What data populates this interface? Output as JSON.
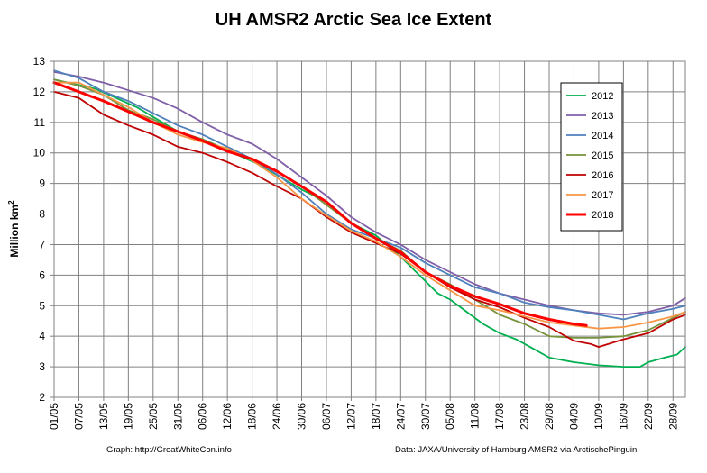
{
  "chart_data": {
    "type": "line",
    "title": "UH AMSR2 Arctic Sea Ice Extent",
    "ylabel_main": "Million km",
    "ylabel_sup": "2",
    "ylim": [
      2,
      13
    ],
    "yticks": [
      2,
      3,
      4,
      5,
      6,
      7,
      8,
      9,
      10,
      11,
      12,
      13
    ],
    "x_days": [
      0,
      153
    ],
    "xticks": [
      {
        "day": 0,
        "label": "01/05"
      },
      {
        "day": 6,
        "label": "07/05"
      },
      {
        "day": 12,
        "label": "13/05"
      },
      {
        "day": 18,
        "label": "19/05"
      },
      {
        "day": 24,
        "label": "25/05"
      },
      {
        "day": 30,
        "label": "31/05"
      },
      {
        "day": 36,
        "label": "06/06"
      },
      {
        "day": 42,
        "label": "12/06"
      },
      {
        "day": 48,
        "label": "18/06"
      },
      {
        "day": 54,
        "label": "24/06"
      },
      {
        "day": 60,
        "label": "30/06"
      },
      {
        "day": 66,
        "label": "06/07"
      },
      {
        "day": 72,
        "label": "12/07"
      },
      {
        "day": 78,
        "label": "18/07"
      },
      {
        "day": 84,
        "label": "24/07"
      },
      {
        "day": 90,
        "label": "30/07"
      },
      {
        "day": 96,
        "label": "05/08"
      },
      {
        "day": 102,
        "label": "11/08"
      },
      {
        "day": 108,
        "label": "17/08"
      },
      {
        "day": 114,
        "label": "23/08"
      },
      {
        "day": 120,
        "label": "29/08"
      },
      {
        "day": 126,
        "label": "04/09"
      },
      {
        "day": 132,
        "label": "10/09"
      },
      {
        "day": 138,
        "label": "16/09"
      },
      {
        "day": 144,
        "label": "22/09"
      },
      {
        "day": 150,
        "label": "28/09"
      }
    ],
    "grid": true,
    "legend_position": "top-right",
    "series": [
      {
        "name": "2012",
        "color": "#00b050",
        "width": 1.8,
        "points": [
          [
            0,
            12.4
          ],
          [
            10,
            12.1
          ],
          [
            20,
            11.5
          ],
          [
            30,
            10.7
          ],
          [
            40,
            10.2
          ],
          [
            50,
            9.6
          ],
          [
            60,
            8.8
          ],
          [
            66,
            8.4
          ],
          [
            72,
            7.7
          ],
          [
            78,
            7.3
          ],
          [
            84,
            6.6
          ],
          [
            90,
            5.8
          ],
          [
            93,
            5.4
          ],
          [
            96,
            5.2
          ],
          [
            100,
            4.8
          ],
          [
            104,
            4.4
          ],
          [
            108,
            4.1
          ],
          [
            112,
            3.9
          ],
          [
            116,
            3.6
          ],
          [
            120,
            3.3
          ],
          [
            126,
            3.15
          ],
          [
            132,
            3.05
          ],
          [
            138,
            3.0
          ],
          [
            142,
            3.0
          ],
          [
            144,
            3.15
          ],
          [
            148,
            3.3
          ],
          [
            151,
            3.4
          ],
          [
            153,
            3.65
          ]
        ]
      },
      {
        "name": "2013",
        "color": "#7f5fa8",
        "width": 1.8,
        "points": [
          [
            0,
            12.65
          ],
          [
            6,
            12.5
          ],
          [
            12,
            12.3
          ],
          [
            18,
            12.05
          ],
          [
            24,
            11.8
          ],
          [
            30,
            11.45
          ],
          [
            36,
            11.0
          ],
          [
            42,
            10.6
          ],
          [
            48,
            10.3
          ],
          [
            54,
            9.8
          ],
          [
            60,
            9.2
          ],
          [
            66,
            8.6
          ],
          [
            72,
            7.9
          ],
          [
            78,
            7.4
          ],
          [
            84,
            7.0
          ],
          [
            90,
            6.5
          ],
          [
            96,
            6.1
          ],
          [
            102,
            5.7
          ],
          [
            108,
            5.4
          ],
          [
            114,
            5.2
          ],
          [
            120,
            5.0
          ],
          [
            126,
            4.85
          ],
          [
            132,
            4.75
          ],
          [
            138,
            4.7
          ],
          [
            144,
            4.8
          ],
          [
            150,
            5.0
          ],
          [
            153,
            5.25
          ]
        ]
      },
      {
        "name": "2014",
        "color": "#4f81bd",
        "width": 1.8,
        "points": [
          [
            0,
            12.7
          ],
          [
            6,
            12.45
          ],
          [
            12,
            12.0
          ],
          [
            18,
            11.7
          ],
          [
            24,
            11.3
          ],
          [
            30,
            10.9
          ],
          [
            36,
            10.6
          ],
          [
            42,
            10.2
          ],
          [
            48,
            9.8
          ],
          [
            54,
            9.3
          ],
          [
            60,
            8.7
          ],
          [
            66,
            8.0
          ],
          [
            72,
            7.5
          ],
          [
            78,
            7.2
          ],
          [
            84,
            6.9
          ],
          [
            90,
            6.4
          ],
          [
            96,
            6.0
          ],
          [
            102,
            5.6
          ],
          [
            108,
            5.4
          ],
          [
            114,
            5.1
          ],
          [
            120,
            4.95
          ],
          [
            126,
            4.85
          ],
          [
            132,
            4.7
          ],
          [
            138,
            4.55
          ],
          [
            144,
            4.75
          ],
          [
            150,
            4.9
          ],
          [
            153,
            5.0
          ]
        ]
      },
      {
        "name": "2015",
        "color": "#77933c",
        "width": 1.8,
        "points": [
          [
            0,
            12.4
          ],
          [
            6,
            12.2
          ],
          [
            12,
            11.9
          ],
          [
            18,
            11.4
          ],
          [
            24,
            11.1
          ],
          [
            30,
            10.7
          ],
          [
            36,
            10.45
          ],
          [
            42,
            10.1
          ],
          [
            48,
            9.8
          ],
          [
            54,
            9.4
          ],
          [
            60,
            8.9
          ],
          [
            66,
            8.3
          ],
          [
            72,
            7.7
          ],
          [
            78,
            7.2
          ],
          [
            84,
            6.8
          ],
          [
            90,
            6.1
          ],
          [
            96,
            5.7
          ],
          [
            102,
            5.2
          ],
          [
            108,
            4.7
          ],
          [
            114,
            4.4
          ],
          [
            120,
            4.0
          ],
          [
            126,
            3.95
          ],
          [
            132,
            3.95
          ],
          [
            138,
            4.0
          ],
          [
            144,
            4.2
          ],
          [
            150,
            4.6
          ],
          [
            153,
            4.8
          ]
        ]
      },
      {
        "name": "2016",
        "color": "#c00000",
        "width": 1.8,
        "points": [
          [
            0,
            12.0
          ],
          [
            6,
            11.8
          ],
          [
            12,
            11.25
          ],
          [
            18,
            10.9
          ],
          [
            24,
            10.6
          ],
          [
            30,
            10.2
          ],
          [
            36,
            10.0
          ],
          [
            42,
            9.7
          ],
          [
            48,
            9.35
          ],
          [
            54,
            8.9
          ],
          [
            60,
            8.5
          ],
          [
            66,
            7.9
          ],
          [
            72,
            7.4
          ],
          [
            78,
            7.05
          ],
          [
            84,
            6.7
          ],
          [
            90,
            6.1
          ],
          [
            96,
            5.6
          ],
          [
            102,
            5.2
          ],
          [
            108,
            4.95
          ],
          [
            114,
            4.6
          ],
          [
            120,
            4.3
          ],
          [
            126,
            3.85
          ],
          [
            130,
            3.75
          ],
          [
            132,
            3.65
          ],
          [
            138,
            3.9
          ],
          [
            144,
            4.1
          ],
          [
            150,
            4.55
          ],
          [
            153,
            4.7
          ]
        ]
      },
      {
        "name": "2017",
        "color": "#f79646",
        "width": 1.8,
        "points": [
          [
            0,
            12.3
          ],
          [
            6,
            12.3
          ],
          [
            12,
            11.9
          ],
          [
            18,
            11.5
          ],
          [
            24,
            11.0
          ],
          [
            30,
            10.6
          ],
          [
            36,
            10.35
          ],
          [
            42,
            10.15
          ],
          [
            48,
            9.75
          ],
          [
            54,
            9.2
          ],
          [
            60,
            8.5
          ],
          [
            66,
            7.95
          ],
          [
            72,
            7.45
          ],
          [
            78,
            7.1
          ],
          [
            84,
            6.6
          ],
          [
            90,
            6.0
          ],
          [
            96,
            5.5
          ],
          [
            102,
            5.0
          ],
          [
            108,
            4.85
          ],
          [
            114,
            4.65
          ],
          [
            120,
            4.45
          ],
          [
            126,
            4.35
          ],
          [
            132,
            4.25
          ],
          [
            138,
            4.3
          ],
          [
            144,
            4.45
          ],
          [
            150,
            4.65
          ],
          [
            153,
            4.8
          ]
        ]
      },
      {
        "name": "2018",
        "color": "#ff0000",
        "width": 3,
        "points": [
          [
            0,
            12.3
          ],
          [
            6,
            12.0
          ],
          [
            12,
            11.7
          ],
          [
            18,
            11.35
          ],
          [
            24,
            11.0
          ],
          [
            30,
            10.7
          ],
          [
            36,
            10.4
          ],
          [
            42,
            10.05
          ],
          [
            48,
            9.8
          ],
          [
            54,
            9.4
          ],
          [
            60,
            8.9
          ],
          [
            66,
            8.4
          ],
          [
            72,
            7.7
          ],
          [
            78,
            7.2
          ],
          [
            84,
            6.75
          ],
          [
            90,
            6.1
          ],
          [
            96,
            5.65
          ],
          [
            102,
            5.3
          ],
          [
            108,
            5.05
          ],
          [
            114,
            4.75
          ],
          [
            120,
            4.55
          ],
          [
            126,
            4.4
          ],
          [
            129,
            4.35
          ]
        ]
      }
    ]
  },
  "footer": {
    "credit_left": "Graph: http://GreatWhiteCon.info",
    "credit_right": "Data: JAXA/University of Hamburg AMSR2 via ArctischePinguin"
  }
}
